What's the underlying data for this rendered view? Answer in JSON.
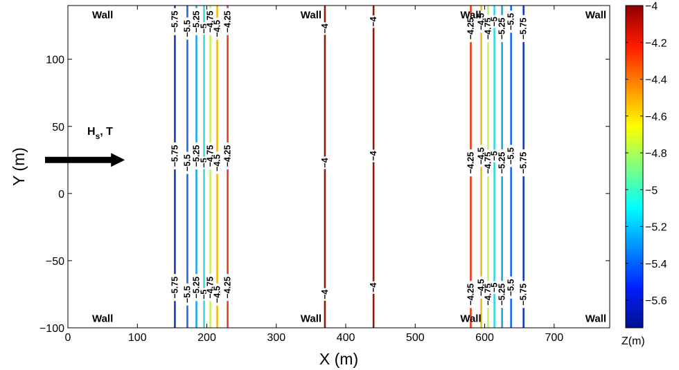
{
  "chart_data": {
    "type": "contour",
    "xlabel": "X (m)",
    "ylabel": "Y (m)",
    "xlim": [
      0,
      780
    ],
    "ylim": [
      -100,
      140
    ],
    "xticks": [
      0,
      100,
      200,
      300,
      400,
      500,
      600,
      700
    ],
    "yticks": [
      -100,
      -50,
      0,
      50,
      100
    ],
    "grid": false,
    "colorbar": {
      "label": "Z(m)",
      "range": [
        -5.75,
        -4.0
      ],
      "ticks": [
        -4,
        -4.2,
        -4.4,
        -4.6,
        -4.8,
        -5,
        -5.2,
        -5.4,
        -5.6
      ],
      "colormap": "jet"
    },
    "contours": [
      {
        "level": -5.75,
        "x": 154,
        "label": "−5.75",
        "color": "#0f3dbc"
      },
      {
        "level": -5.5,
        "x": 172,
        "label": "−5.5",
        "color": "#1a6ae6"
      },
      {
        "level": -5.25,
        "x": 185,
        "label": "−5.25",
        "color": "#1ca6e8"
      },
      {
        "level": -5.0,
        "x": 196,
        "label": "−5",
        "color": "#38d8d8"
      },
      {
        "level": -4.75,
        "x": 205,
        "label": "−4.75",
        "color": "#c7ef5e"
      },
      {
        "level": -4.5,
        "x": 215,
        "label": "−4.5",
        "color": "#f2ba15"
      },
      {
        "level": -4.25,
        "x": 230,
        "label": "−4.25",
        "color": "#ec3a16"
      },
      {
        "level": -4.0,
        "x": 370,
        "label": "−4",
        "color": "#8a1a10"
      },
      {
        "level": -4.0,
        "x": 440,
        "label": "−4",
        "color": "#8a1a10"
      },
      {
        "level": -4.25,
        "x": 580,
        "label": "−4.25",
        "color": "#ec3a16"
      },
      {
        "level": -4.5,
        "x": 595,
        "label": "−4.5",
        "color": "#f2ba15"
      },
      {
        "level": -4.75,
        "x": 605,
        "label": "−4.75",
        "color": "#c7ef5e"
      },
      {
        "level": -5.0,
        "x": 614,
        "label": "−5",
        "color": "#38d8d8"
      },
      {
        "level": -5.25,
        "x": 625,
        "label": "−5.25",
        "color": "#1ca6e8"
      },
      {
        "level": -5.5,
        "x": 638,
        "label": "−5.5",
        "color": "#1a6ae6"
      },
      {
        "level": -5.75,
        "x": 656,
        "label": "−5.75",
        "color": "#0f3dbc"
      }
    ],
    "annotations": [
      {
        "text": "Wall",
        "x": 50,
        "y": 133
      },
      {
        "text": "Wall",
        "x": 350,
        "y": 133
      },
      {
        "text": "Wall",
        "x": 580,
        "y": 133
      },
      {
        "text": "Wall",
        "x": 760,
        "y": 133
      },
      {
        "text": "Wall",
        "x": 50,
        "y": -93
      },
      {
        "text": "Wall",
        "x": 350,
        "y": -93
      },
      {
        "text": "Wall",
        "x": 580,
        "y": -93
      },
      {
        "text": "Wall",
        "x": 760,
        "y": -93
      }
    ],
    "arrow": {
      "label_main": "H",
      "label_sub": "s",
      "label_rest": ", T",
      "x_from": -35,
      "x_to": 80,
      "y": 25
    }
  }
}
